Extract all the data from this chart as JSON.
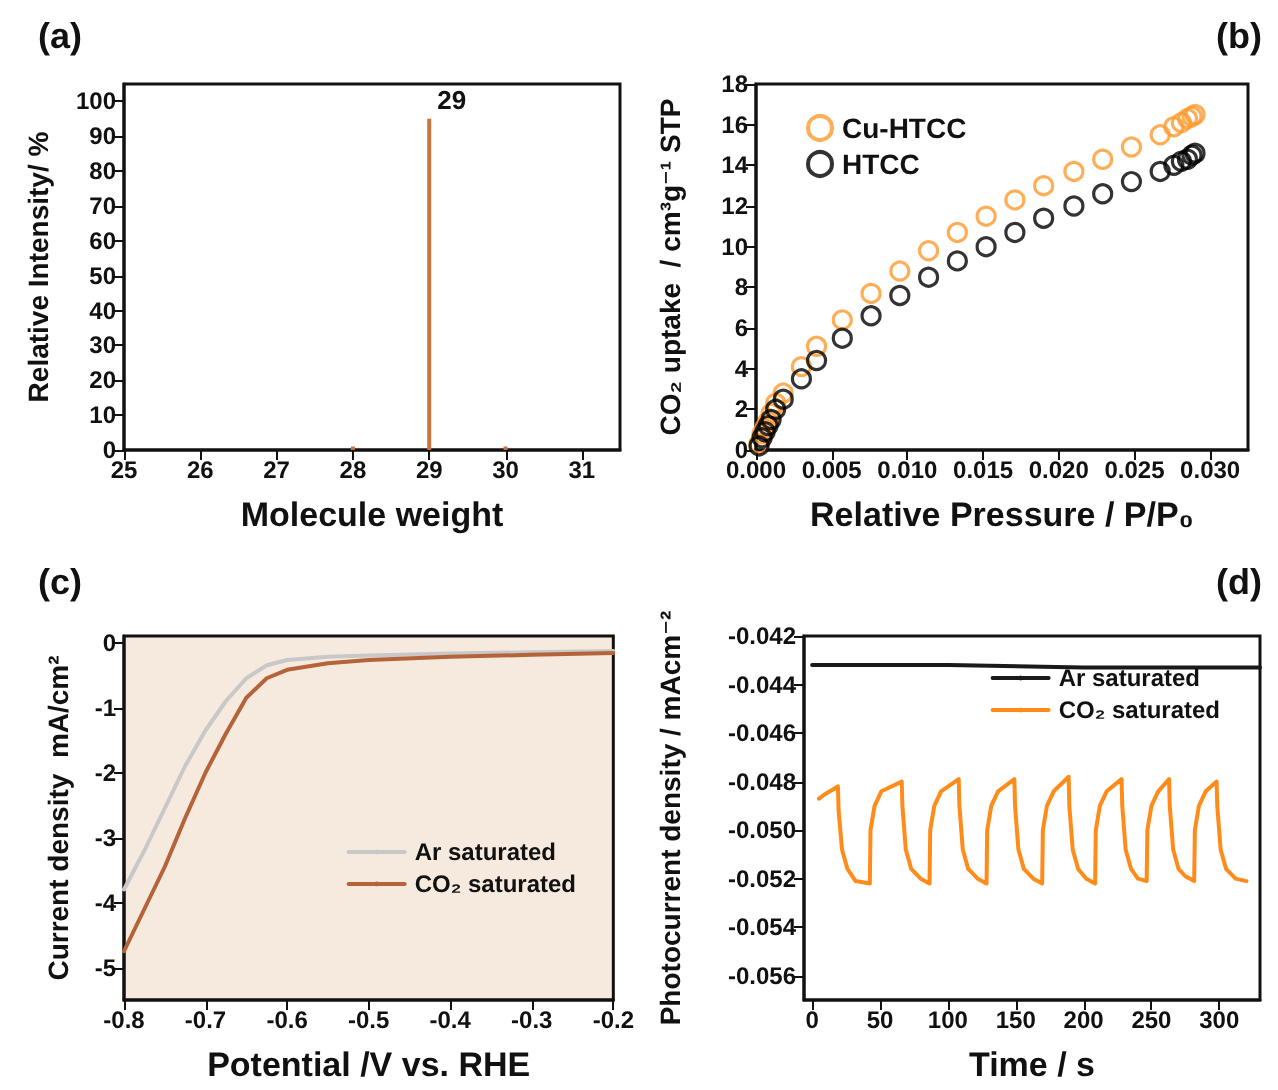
{
  "chart_data": [
    {
      "type": "bar",
      "title": "(a)",
      "xlabel": "Molecule weight",
      "ylabel": "Relative Intensity/ %",
      "x": [
        28,
        29,
        30
      ],
      "values": [
        1,
        95,
        1
      ],
      "color": "#c8743c",
      "xlim": [
        25,
        31.5
      ],
      "xticks": [
        25,
        26,
        27,
        28,
        29,
        30,
        31
      ],
      "ylim": [
        0,
        105
      ],
      "yticks": [
        0,
        10,
        20,
        30,
        40,
        50,
        60,
        70,
        80,
        90,
        100
      ],
      "grid": false,
      "legend": false,
      "annotations": [
        {
          "text": "29",
          "x": 29,
          "y": 95
        }
      ]
    },
    {
      "type": "scatter",
      "title": "(b)",
      "xlabel": "Relative Pressure / P/P₀",
      "ylabel": "CO₂ uptake  / cm³g⁻¹ STP",
      "marker": "circle",
      "grid": false,
      "legend": "top left",
      "xlim": [
        0,
        0.0325
      ],
      "xticks": [
        {
          "value": 0,
          "label": "0.000"
        },
        {
          "value": 0.005,
          "label": "0.005"
        },
        {
          "value": 0.01,
          "label": "0.010"
        },
        {
          "value": 0.015,
          "label": "0.015"
        },
        {
          "value": 0.02,
          "label": "0.020"
        },
        {
          "value": 0.025,
          "label": "0.025"
        },
        {
          "value": 0.03,
          "label": "0.030"
        }
      ],
      "ylim": [
        0,
        18
      ],
      "yticks": [
        0,
        2,
        4,
        6,
        8,
        10,
        12,
        14,
        16,
        18
      ],
      "x": [
        0.0002,
        0.0004,
        0.0006,
        0.0008,
        0.001,
        0.0013,
        0.0018,
        0.003,
        0.004,
        0.0057,
        0.0076,
        0.0095,
        0.0114,
        0.0133,
        0.0152,
        0.0171,
        0.019,
        0.021,
        0.0229,
        0.0248,
        0.0267,
        0.0276,
        0.0281,
        0.0285,
        0.0288,
        0.029
      ],
      "series": [
        {
          "name": "Cu-HTCC",
          "color": "#ff9a2e",
          "values": [
            0.3,
            0.8,
            1.1,
            1.4,
            1.8,
            2.3,
            2.8,
            4.1,
            5.1,
            6.4,
            7.7,
            8.8,
            9.8,
            10.7,
            11.5,
            12.3,
            13.0,
            13.7,
            14.3,
            14.9,
            15.5,
            15.9,
            16.1,
            16.3,
            16.4,
            16.5
          ]
        },
        {
          "name": "HTCC",
          "color": "#000000",
          "values": [
            0.2,
            0.6,
            0.9,
            1.2,
            1.5,
            2.0,
            2.5,
            3.5,
            4.4,
            5.5,
            6.6,
            7.6,
            8.5,
            9.3,
            10.0,
            10.7,
            11.4,
            12.0,
            12.6,
            13.2,
            13.7,
            14.0,
            14.2,
            14.3,
            14.5,
            14.6
          ]
        }
      ]
    },
    {
      "type": "line",
      "title": "(c)",
      "xlabel": "Potential /V vs. RHE",
      "ylabel": "Current density  mA/cm²",
      "marker": "none",
      "line_style": "solid",
      "grid": false,
      "legend": "right",
      "xlim": [
        -0.8,
        -0.2
      ],
      "xticks": [
        -0.8,
        -0.7,
        -0.6,
        -0.5,
        -0.4,
        -0.3,
        -0.2
      ],
      "ylim": [
        -5.5,
        0.1
      ],
      "yticks": [
        -5,
        -4,
        -3,
        -2,
        -1,
        0
      ],
      "x": [
        -0.8,
        -0.775,
        -0.75,
        -0.725,
        -0.7,
        -0.675,
        -0.65,
        -0.625,
        -0.6,
        -0.55,
        -0.5,
        -0.4,
        -0.3,
        -0.2
      ],
      "series": [
        {
          "name": "Ar saturated",
          "color": "#c8c8c8",
          "values": [
            -3.8,
            -3.2,
            -2.55,
            -1.9,
            -1.35,
            -0.9,
            -0.55,
            -0.35,
            -0.27,
            -0.22,
            -0.2,
            -0.17,
            -0.15,
            -0.13
          ]
        },
        {
          "name": "CO₂ saturated",
          "color": "#b5643a",
          "values": [
            -4.75,
            -4.1,
            -3.45,
            -2.7,
            -2.0,
            -1.4,
            -0.85,
            -0.55,
            -0.42,
            -0.32,
            -0.27,
            -0.22,
            -0.19,
            -0.16
          ]
        }
      ]
    },
    {
      "type": "line",
      "title": "(d)",
      "xlabel": "Time / s",
      "ylabel": "Photocurrent density / mAcm⁻²",
      "marker": "none",
      "line_style": "solid",
      "grid": false,
      "legend": "top right",
      "xlim": [
        -6,
        330
      ],
      "xticks": [
        0,
        50,
        100,
        150,
        200,
        250,
        300
      ],
      "ylim": [
        -0.057,
        -0.042
      ],
      "yticks": [
        {
          "value": -0.056,
          "label": "-0.056"
        },
        {
          "value": -0.054,
          "label": "-0.054"
        },
        {
          "value": -0.052,
          "label": "-0.052"
        },
        {
          "value": -0.05,
          "label": "-0.050"
        },
        {
          "value": -0.048,
          "label": "-0.048"
        },
        {
          "value": -0.046,
          "label": "-0.046"
        },
        {
          "value": -0.044,
          "label": "-0.044"
        },
        {
          "value": -0.042,
          "label": "-0.042"
        }
      ],
      "series": [
        {
          "name": "Ar saturated",
          "color": "#1a1a1a",
          "x": [
            0,
            100,
            200,
            330
          ],
          "values": [
            -0.0432,
            -0.0432,
            -0.0433,
            -0.0433
          ]
        },
        {
          "name": "CO₂ saturated",
          "color": "#ff8c1a",
          "x": [
            5,
            10,
            19,
            19.5,
            22,
            26,
            32,
            42.5,
            43,
            46,
            51,
            66,
            66.5,
            69,
            73,
            80,
            86.5,
            87,
            90,
            95,
            108,
            108.5,
            111,
            115,
            122,
            128.5,
            129,
            132,
            137,
            149,
            149.5,
            152,
            156,
            163,
            169.5,
            170,
            173,
            178,
            189,
            189.5,
            192,
            196,
            202,
            208.5,
            209,
            212,
            217,
            228,
            228.5,
            231,
            235,
            240,
            246.5,
            247,
            250,
            255,
            263,
            263.5,
            266,
            270,
            275,
            281.5,
            282,
            285,
            290,
            298,
            298.5,
            301,
            305,
            312,
            320
          ],
          "values": [
            -0.0487,
            -0.0485,
            -0.0482,
            -0.0492,
            -0.0508,
            -0.0516,
            -0.0521,
            -0.0522,
            -0.05,
            -0.049,
            -0.0484,
            -0.048,
            -0.049,
            -0.0508,
            -0.0516,
            -0.052,
            -0.0522,
            -0.05,
            -0.049,
            -0.0484,
            -0.0479,
            -0.049,
            -0.0508,
            -0.0516,
            -0.052,
            -0.0522,
            -0.05,
            -0.049,
            -0.0484,
            -0.0479,
            -0.049,
            -0.0508,
            -0.0516,
            -0.052,
            -0.0522,
            -0.05,
            -0.049,
            -0.0484,
            -0.0478,
            -0.049,
            -0.0508,
            -0.0516,
            -0.052,
            -0.0522,
            -0.05,
            -0.049,
            -0.0484,
            -0.0479,
            -0.049,
            -0.0508,
            -0.0516,
            -0.052,
            -0.0521,
            -0.05,
            -0.049,
            -0.0484,
            -0.0479,
            -0.049,
            -0.0508,
            -0.0516,
            -0.0519,
            -0.0521,
            -0.05,
            -0.049,
            -0.0484,
            -0.048,
            -0.049,
            -0.0508,
            -0.0516,
            -0.052,
            -0.0521
          ]
        }
      ]
    }
  ]
}
